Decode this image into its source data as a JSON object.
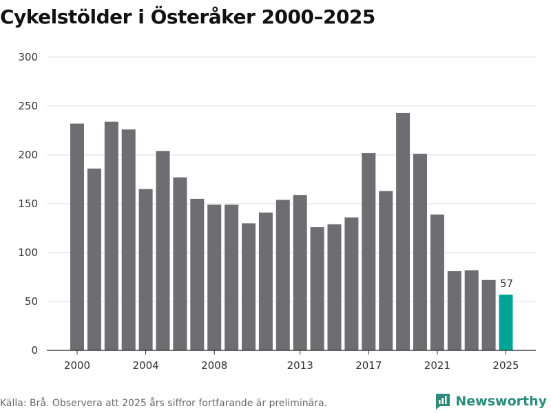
{
  "title": "Cykelstölder i Österåker 2000–2025",
  "source_note": "Källa: Brå. Observera att 2025 års siffror fortfarande är preliminära.",
  "brand": {
    "name": "Newsworthy",
    "icon": "newsworthy-logo-icon"
  },
  "colors": {
    "bar": "#6e6d72",
    "highlight": "#00a596",
    "grid": "#dcdcdc",
    "brand": "#2b8c7a"
  },
  "chart_data": {
    "type": "bar",
    "title": "Cykelstölder i Österåker 2000–2025",
    "xlabel": "",
    "ylabel": "",
    "categories": [
      "2000",
      "2001",
      "2002",
      "2003",
      "2004",
      "2005",
      "2006",
      "2007",
      "2008",
      "2009",
      "2010",
      "2011",
      "2012",
      "2013",
      "2014",
      "2015",
      "2016",
      "2017",
      "2018",
      "2019",
      "2020",
      "2021",
      "2022",
      "2023",
      "2024",
      "2025"
    ],
    "values": [
      232,
      186,
      234,
      226,
      165,
      204,
      177,
      155,
      149,
      149,
      130,
      141,
      154,
      159,
      126,
      129,
      136,
      202,
      163,
      243,
      201,
      139,
      81,
      82,
      72,
      57
    ],
    "highlight_index": 25,
    "highlight_label": "57",
    "ylim": [
      0,
      300
    ],
    "yticks": [
      0,
      50,
      100,
      150,
      200,
      250,
      300
    ],
    "xtick_labels": [
      "2000",
      "2004",
      "2008",
      "2013",
      "2017",
      "2021",
      "2025"
    ],
    "grid": true
  }
}
